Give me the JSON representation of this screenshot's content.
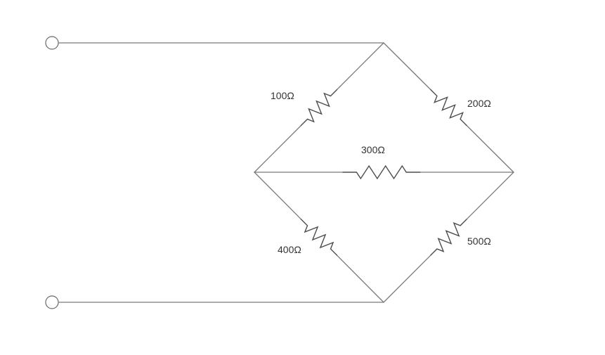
{
  "colors": {
    "wire": "#7a7a7a",
    "resistor": "#4d4d4d",
    "label": "#333333",
    "background": "#ffffff"
  },
  "resistors": [
    {
      "id": "r1",
      "value": "100Ω"
    },
    {
      "id": "r2",
      "value": "200Ω"
    },
    {
      "id": "r3",
      "value": "300Ω"
    },
    {
      "id": "r4",
      "value": "400Ω"
    },
    {
      "id": "r5",
      "value": "500Ω"
    }
  ]
}
